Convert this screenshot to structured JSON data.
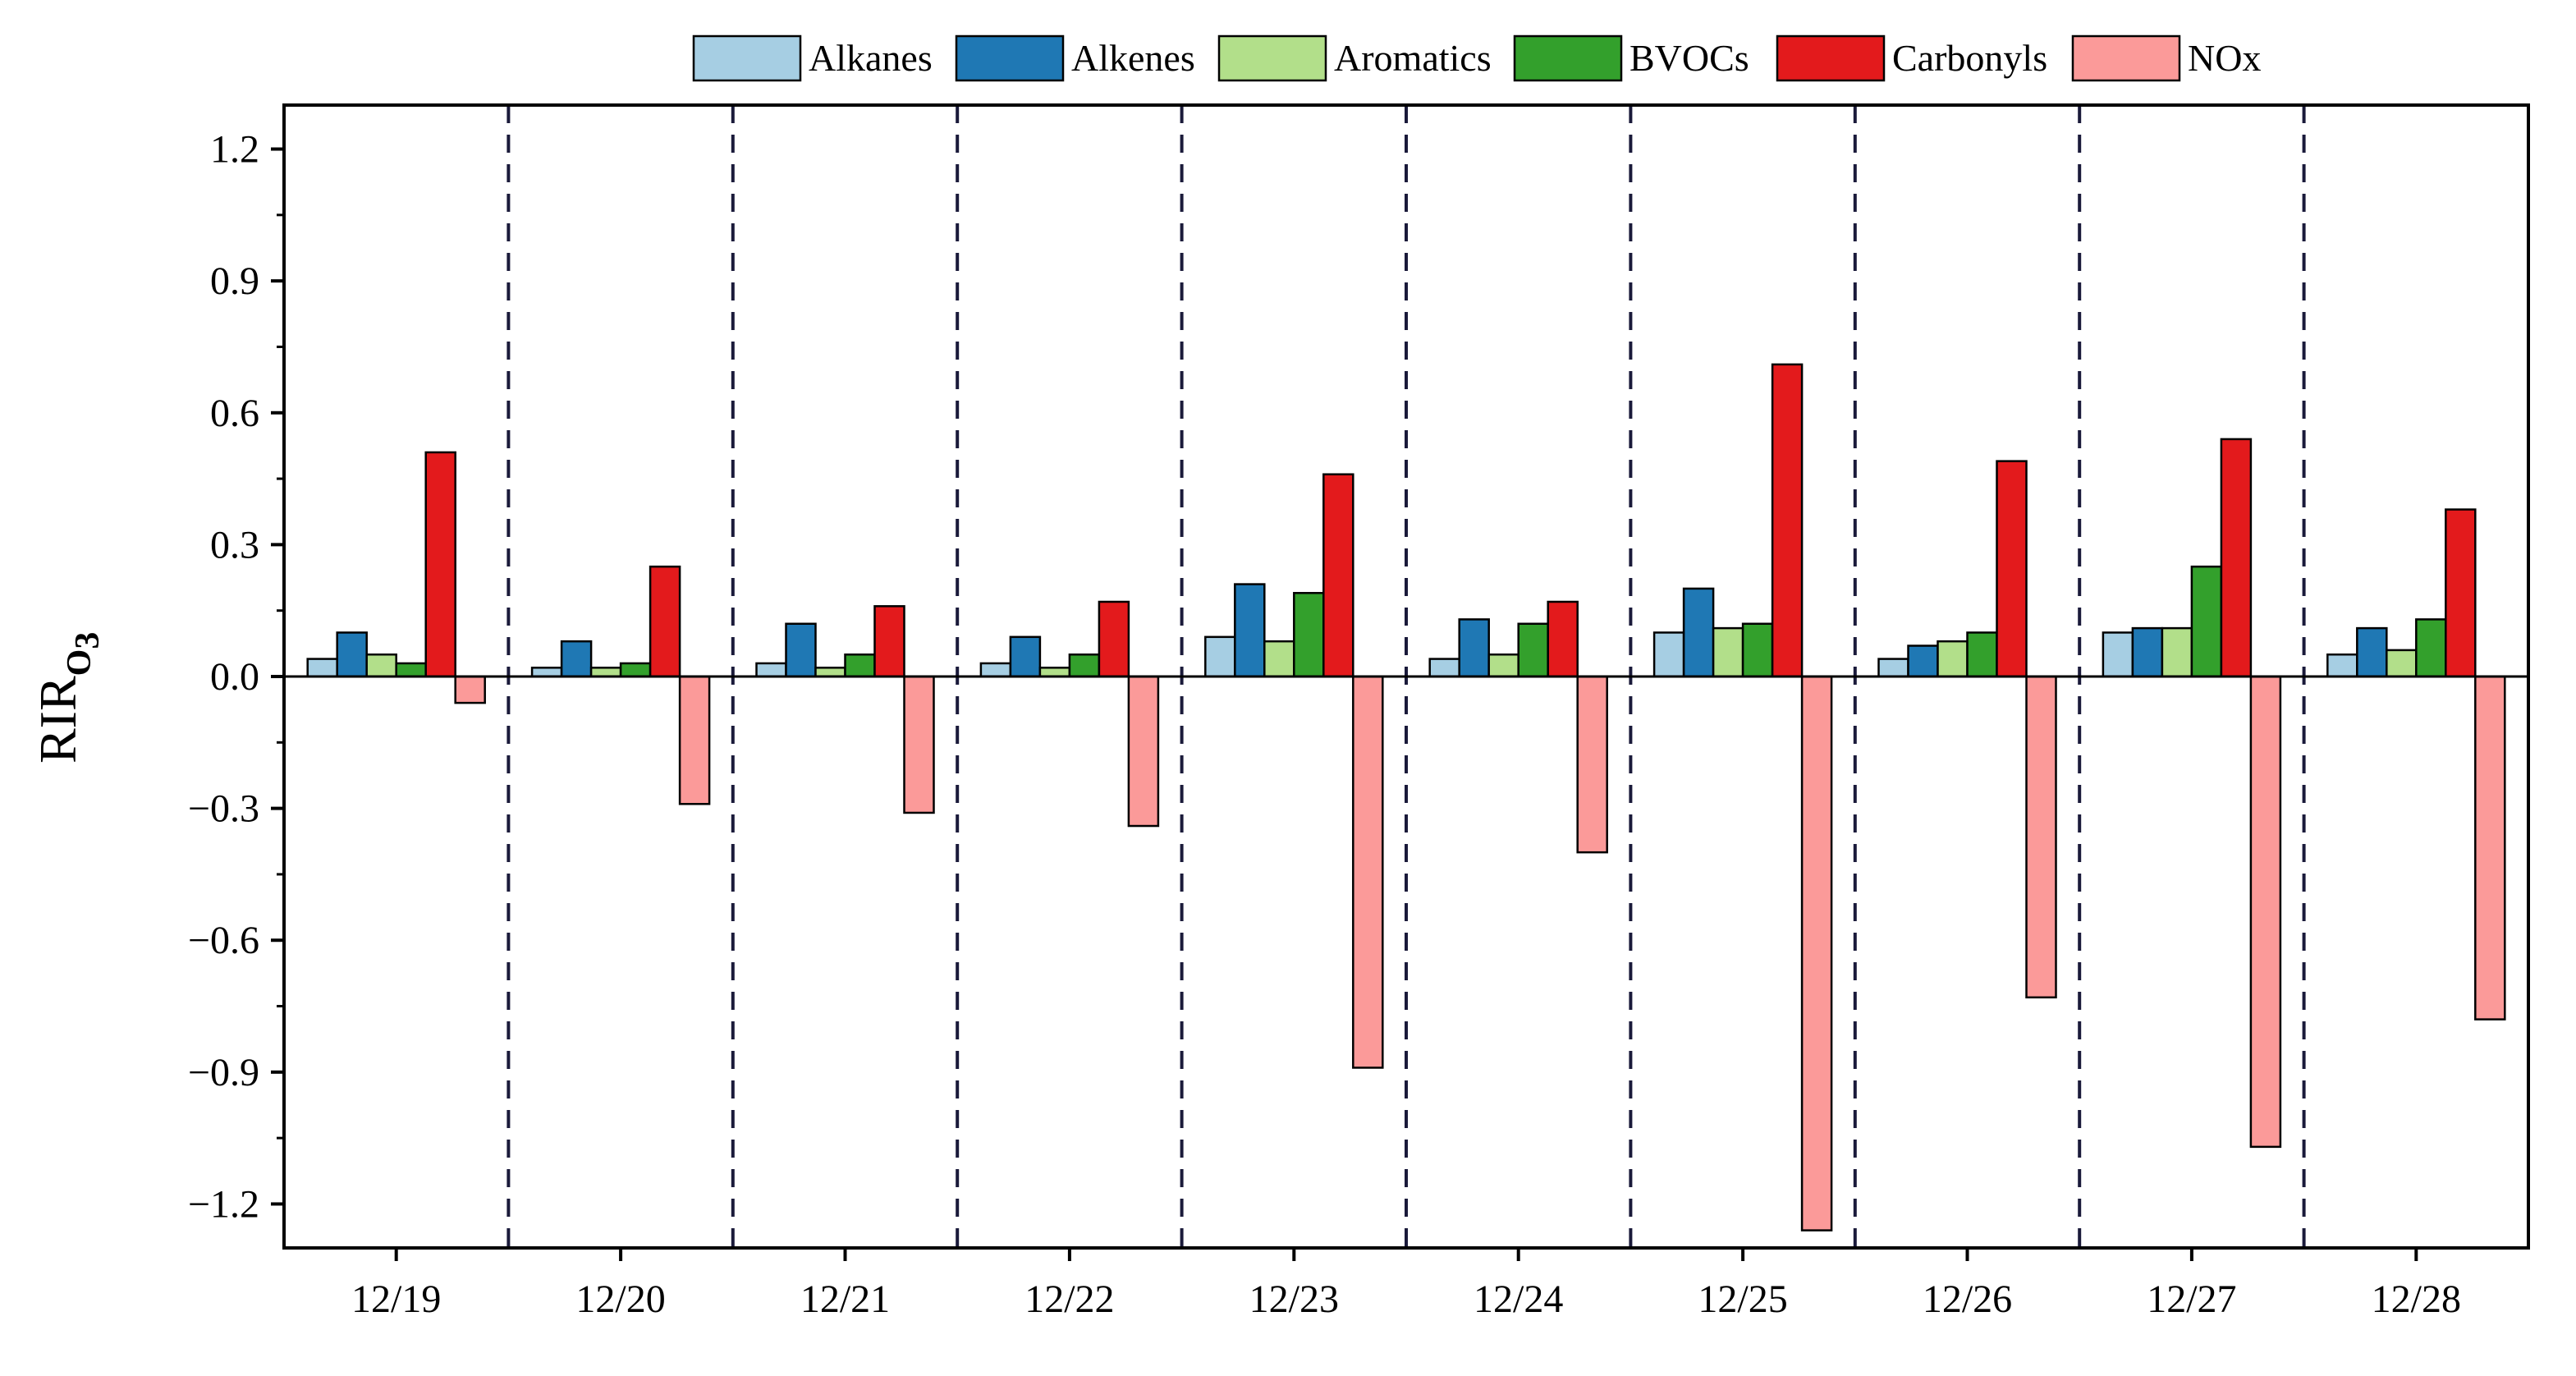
{
  "chart_data": {
    "type": "bar",
    "title": "",
    "xlabel": "",
    "ylabel": {
      "main": "RIR",
      "subscript": "O",
      "sub_subscript": "3"
    },
    "ylim": [
      -1.3,
      1.3
    ],
    "yticks": [
      1.2,
      0.9,
      0.6,
      0.3,
      0.0,
      -0.3,
      -0.6,
      -0.9,
      -1.2
    ],
    "ytick_labels": [
      "1.2",
      "0.9",
      "0.6",
      "0.3",
      "0.0",
      "−0.3",
      "−0.6",
      "−0.9",
      "−1.2"
    ],
    "categories": [
      "12/19",
      "12/20",
      "12/21",
      "12/22",
      "12/23",
      "12/24",
      "12/25",
      "12/26",
      "12/27",
      "12/28"
    ],
    "legend_position": "top",
    "series": [
      {
        "name": "Alkanes",
        "color": "#a6cee3",
        "values": [
          0.04,
          0.02,
          0.03,
          0.03,
          0.09,
          0.04,
          0.1,
          0.04,
          0.1,
          0.05
        ]
      },
      {
        "name": "Alkenes",
        "color": "#1f78b4",
        "values": [
          0.1,
          0.08,
          0.12,
          0.09,
          0.21,
          0.13,
          0.2,
          0.07,
          0.11,
          0.11
        ]
      },
      {
        "name": "Aromatics",
        "color": "#b2df8a",
        "values": [
          0.05,
          0.02,
          0.02,
          0.02,
          0.08,
          0.05,
          0.11,
          0.08,
          0.11,
          0.06
        ]
      },
      {
        "name": "BVOCs",
        "color": "#33a02c",
        "values": [
          0.03,
          0.03,
          0.05,
          0.05,
          0.19,
          0.12,
          0.12,
          0.1,
          0.25,
          0.13
        ]
      },
      {
        "name": "Carbonyls",
        "color": "#e31a1c",
        "values": [
          0.51,
          0.25,
          0.16,
          0.17,
          0.46,
          0.17,
          0.71,
          0.49,
          0.54,
          0.38
        ]
      },
      {
        "name": "NOx",
        "color": "#fb9a99",
        "values": [
          -0.06,
          -0.29,
          -0.31,
          -0.34,
          -0.89,
          -0.4,
          -1.26,
          -0.73,
          -1.07,
          -0.78
        ]
      }
    ]
  }
}
